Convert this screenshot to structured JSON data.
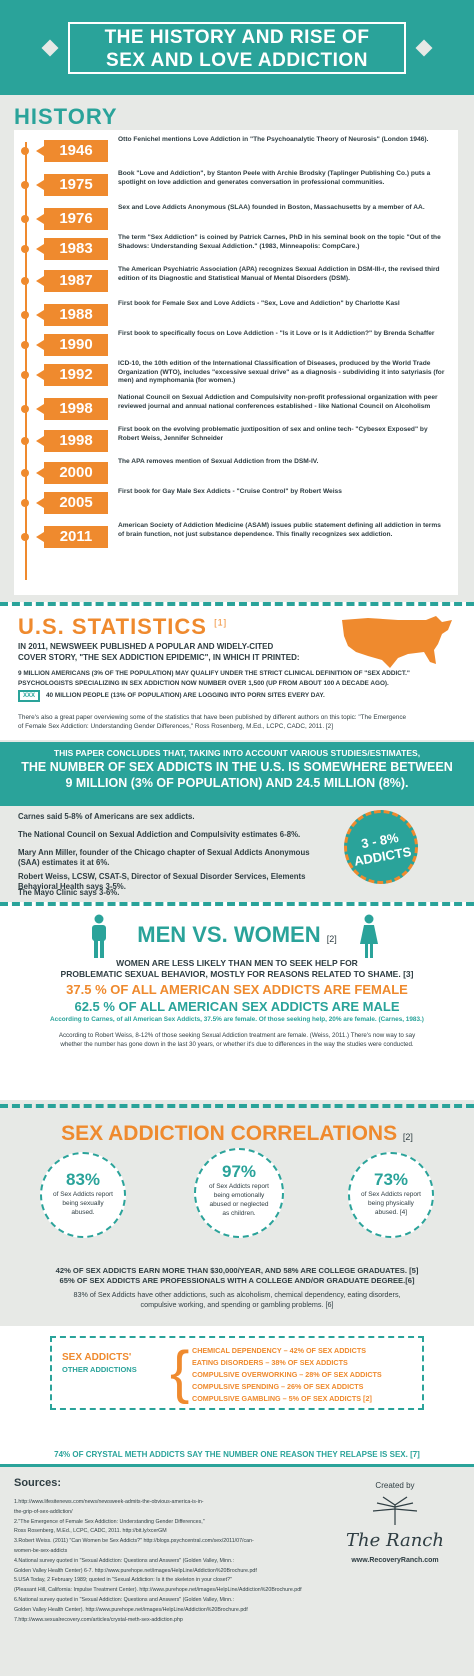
{
  "header": {
    "title_line1": "THE HISTORY AND RISE OF",
    "title_line2": "SEX AND LOVE ADDICTION"
  },
  "history": {
    "heading": "HISTORY",
    "events": [
      {
        "year": "1946",
        "text": "Otto Fenichel mentions Love Addiction in \"The Psychoanalytic Theory of Neurosis\" (London 1946)."
      },
      {
        "year": "1975",
        "text": "Book \"Love and Addiction\", by Stanton Peele with Archie Brodsky (Taplinger Publishing Co.) puts a spotlight on love addiction and generates conversation in professional communities."
      },
      {
        "year": "1976",
        "text": "Sex and Love Addicts Anonymous (SLAA) founded in Boston, Massachusetts by a member of AA."
      },
      {
        "year": "1983",
        "text": "The term \"Sex Addiction\" is coined by Patrick Carnes, PhD in his seminal book on the topic \"Out of the Shadows: Understanding Sexual Addiction.\" (1983, Minneapolis: CompCare.)"
      },
      {
        "year": "1987",
        "text": "The American Psychiatric Association (APA) recognizes Sexual Addiction in DSM-III-r, the revised third edition of its Diagnostic and Statistical Manual of Mental Disorders (DSM)."
      },
      {
        "year": "1988",
        "text": "First book for Female Sex and Love Addicts - \"Sex, Love and Addiction\" by Charlotte Kasl"
      },
      {
        "year": "1990",
        "text": "First book to specifically focus on Love Addiction - \"Is it Love or Is it Addiction?\" by Brenda Schaffer"
      },
      {
        "year": "1992",
        "text": "ICD-10, the 10th edition of the International Classification of Diseases, produced by the World Trade Organization (WTO), includes \"excessive sexual drive\" as a diagnosis - subdividing it into satyriasis (for men) and nymphomania (for women.)"
      },
      {
        "year": "1998",
        "text": "National Council on Sexual Addiction and Compulsivity non-profit professional organization with peer reviewed journal and annual national conferences established - like National Council on Alcoholism"
      },
      {
        "year": "1998",
        "text": "First book on the evolving problematic juxtiposition of sex and online tech- \"Cybesex Exposed\" by Robert Weiss, Jennifer Schneider"
      },
      {
        "year": "2000",
        "text": "The APA removes mention of Sexual Addiction from the DSM-IV."
      },
      {
        "year": "2005",
        "text": "First book for Gay Male Sex Addicts - \"Cruise Control\" by Robert Weiss"
      },
      {
        "year": "2011",
        "text": "American Society of Addiction Medicine (ASAM) issues public statement defining all addiction in terms of brain function, not just substance dependence. This finally recognizes sex addiction."
      }
    ]
  },
  "stats": {
    "heading": "U.S. STATISTICS",
    "ref": "[1]",
    "intro": [
      "IN 2011, NEWSWEEK PUBLISHED A POPULAR AND WIDELY-CITED",
      "COVER STORY, \"THE SEX ADDICTION EPIDEMIC\", IN WHICH IT PRINTED:"
    ],
    "p1": "9 MILLION AMERICANS (3% OF THE POPULATION) MAY QUALIFY UNDER THE STRICT CLINICAL DEFINITION OF \"SEX ADDICT.\"",
    "p2": "PSYCHOLOGISTS SPECIALIZING IN SEX ADDICTION NOW NUMBER OVER 1,500 (UP FROM ABOUT 100 A DECADE AGO).",
    "xxx": "XXX",
    "p3": "40 MILLION PEOPLE (13% OF POPULATION) ARE LOGGING INTO PORN SITES EVERY DAY.",
    "note": [
      "There's also a great paper overviewing some of the statistics that have been published by different authors on this topic: \"The Emergence",
      "of Female Sex Addiction: Understanding Gender Differences,\" Ross Rosenberg, M.Ed., LCPC, CADC, 2011. [2]"
    ]
  },
  "conclude": {
    "l1": [
      "THIS PAPER CONCLUDES THAT, TAKING INTO ACCOUNT VARIOUS STUDIES/ESTIMATES,"
    ],
    "l2": [
      "THE NUMBER OF SEX ADDICTS IN THE U.S. IS SOMEWHERE BETWEEN",
      "9 MILLION (3% OF POPULATION) AND 24.5 MILLION (8%)."
    ]
  },
  "estimates": [
    "Carnes said 5-8% of Americans are sex addicts.",
    "The National Council on Sexual Addiction and Compulsivity estimates 6-8%.",
    "Mary Ann Miller, founder of the Chicago chapter of Sexual Addicts Anonymous",
    "(SAA) estimates it at 6%.",
    "Robert Weiss, LCSW, CSAT-S, Director of Sexual Disorder Services, Elements",
    "Behavioral Health says 3-5%.",
    "The Mayo Clinic says 3-6%."
  ],
  "badge": {
    "l1": "3 - 8%",
    "l2": "ADDICTS"
  },
  "mw": {
    "heading": "MEN VS. WOMEN",
    "ref": "[2]",
    "lines": [
      "WOMEN ARE LESS LIKELY THAN MEN TO SEEK HELP FOR",
      "PROBLEMATIC SEXUAL BEHAVIOR, MOSTLY FOR REASONS RELATED TO SHAME. [3]",
      "37.5 % OF ALL AMERICAN SEX ADDICTS ARE FEMALE",
      "62.5 % OF ALL AMERICAN SEX ADDICTS ARE MALE",
      "According to Carnes, of all American Sex Addicts, 37.5% are female. Of those seeking help, 20% are female. (Carnes, 1983.)",
      "According to Robert Weiss, 8-12% of those seeking Sexual Addiction treatment are female. (Weiss, 2011.) There's now way to say",
      "whether the number has gone down in the last 30 years, or whether it's due to differences in the way the studies were conducted."
    ]
  },
  "corr": {
    "heading": "SEX ADDICTION CORRELATIONS",
    "ref": "[2]",
    "circles": [
      {
        "pct": "83%",
        "text": "of Sex Addicts report being sexually abused."
      },
      {
        "pct": "97%",
        "text": "of Sex Addicts report being emotionally abused or neglected as children."
      },
      {
        "pct": "73%",
        "text": "of Sex Addicts report being physically abused. [4]"
      }
    ],
    "lines": [
      "42% OF SEX ADDICTS EARN MORE THAN $30,000/YEAR, AND 58% ARE COLLEGE GRADUATES. [5]",
      "65% OF SEX ADDICTS ARE PROFESSIONALS WITH A COLLEGE AND/OR GRADUATE DEGREE.[6]",
      "83% of Sex Addicts have other addictions, such as alcoholism, chemical dependency, eating disorders,",
      "compulsive working, and spending or gambling problems. [6]"
    ],
    "box_label": "SEX ADDICTS'",
    "box_sub": "OTHER ADDICTIONS",
    "addictions": [
      "CHEMICAL DEPENDENCY – 42% OF SEX ADDICTS",
      "EATING DISORDERS – 38% OF SEX ADDICTS",
      "COMPULSIVE OVERWORKING – 28% OF SEX ADDICTS",
      "COMPULSIVE SPENDING – 26% OF SEX ADDICTS",
      "COMPULSIVE GAMBLING – 5% OF SEX ADDICTS [2]"
    ],
    "crystal": "74% OF CRYSTAL METH ADDICTS SAY THE NUMBER ONE REASON THEY RELAPSE IS SEX. [7]"
  },
  "sources": {
    "heading": "Sources:",
    "lines": [
      "1.http://www.lifesitenews.com/news/newsweek-admits-the-obvious-america-is-in-",
      "the-grip-of-sex-addiction/",
      "2.\"The Emergence of Female Sex Addiction: Understanding Gender Differences,\"",
      "Ross Rosenberg, M.Ed., LCPC, CADC, 2011. http://bit.ly/xcerGM",
      "3.Robert Weiss. (2011) \"Can Women be Sex Addicts?\" http://blogs.psychcentral.com/sex/2011/07/can-",
      "women-be-sex-addicts",
      "4.National survey quoted in \"Sexual Addiction: Questions and Answers\" (Golden Valley, Minn.:",
      "Golden Valley Health Center) 6-7. http://www.purehope.net/images/HelpLine/Addiction%20Brochure.pdf",
      "5.USA Today, 2 February 1989; quoted in \"Sexual Addiction: Is it the skeleton in your closet?\"",
      "(Pleasant Hill, California: Impulse Treatment Center). http://www.purehope.net/images/HelpLine/Addiction%20Brochure.pdf",
      "6.National survey quoted in \"Sexual Addiction: Questions and Answers\" (Golden Valley, Minn.:",
      "Golden Valley Health Center). http://www.purehope.net/images/HelpLine/Addiction%20Brochure.pdf",
      "7.http://www.sexualrecovery.com/articles/crystal-meth-sex-addiction.php"
    ],
    "created_by": "Created by",
    "logo": "The Ranch",
    "url": "www.RecoveryRanch.com"
  },
  "colors": {
    "teal": "#2aa39a",
    "orange": "#ef8a2e"
  }
}
